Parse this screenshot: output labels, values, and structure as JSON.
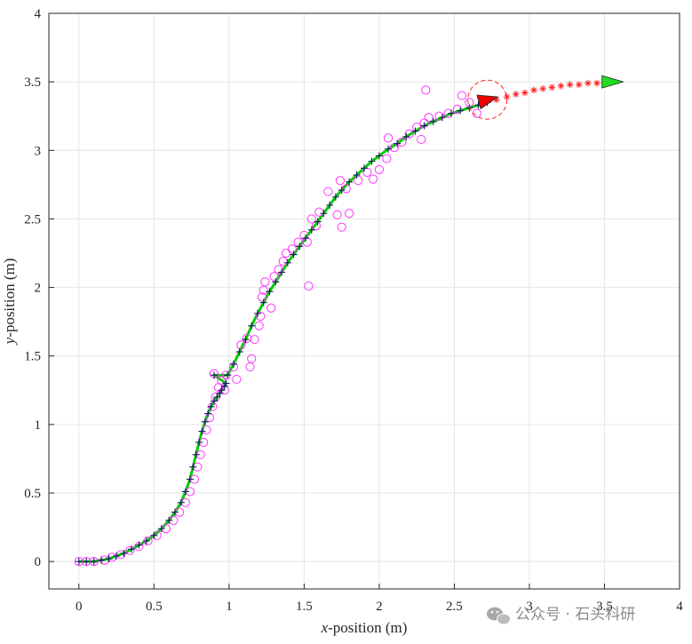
{
  "chart_data": {
    "type": "scatter",
    "title": "",
    "xlabel": {
      "var": "x",
      "rest": "-position (m)"
    },
    "ylabel": {
      "var": "y",
      "rest": "-position (m)"
    },
    "xlim": [
      -0.2,
      4
    ],
    "ylim": [
      -0.2,
      4
    ],
    "xticks": [
      0,
      0.5,
      1,
      1.5,
      2,
      2.5,
      3,
      3.5,
      4
    ],
    "xtick_labels": [
      "0",
      "0.5",
      "1",
      "1.5",
      "2",
      "2.5",
      "3",
      "3.5",
      "4"
    ],
    "yticks": [
      0,
      0.5,
      1,
      1.5,
      2,
      2.5,
      3,
      3.5,
      4
    ],
    "ytick_labels": [
      "0",
      "0.5",
      "1",
      "1.5",
      "2",
      "2.5",
      "3",
      "3.5",
      "4"
    ],
    "grid": true,
    "colors": {
      "measurements": "#ff33ff",
      "estimate_line": "#00cc00",
      "estimate_markers": "#1a1a66",
      "prediction": "#ff2222",
      "current_marker": "#ee0000",
      "goal_marker": "#22dd22",
      "gridline": "#e6e6e6"
    },
    "series": [
      {
        "marker": "circle",
        "x": [
          0,
          0.05,
          0.1,
          0.17,
          0.22,
          0.28,
          0.34,
          0.4,
          0.46,
          0.52,
          0.58,
          0.63,
          0.67,
          0.71,
          0.74,
          0.77,
          0.79,
          0.81,
          0.83,
          0.85,
          0.87,
          0.89,
          0.91,
          0.93,
          0.95,
          0.97,
          0.98,
          0.9,
          1.03,
          1.05,
          1.08,
          1.12,
          1.14,
          1.15,
          1.17,
          1.2,
          1.21,
          1.22,
          1.24,
          1.23,
          1.28,
          1.3,
          1.33,
          1.36,
          1.38,
          1.42,
          1.46,
          1.5,
          1.53,
          1.55,
          1.58,
          1.52,
          1.6,
          1.66,
          1.72,
          1.75,
          1.78,
          1.8,
          1.74,
          1.86,
          1.92,
          1.96,
          2,
          2.05,
          2.06,
          2.1,
          2.15,
          2.2,
          2.25,
          2.3,
          2.33,
          2.28,
          2.31,
          2.4,
          2.46,
          2.52,
          2.55,
          2.6,
          2.65
        ],
        "y": [
          0,
          0,
          0,
          0.01,
          0.03,
          0.05,
          0.08,
          0.11,
          0.15,
          0.19,
          0.24,
          0.3,
          0.36,
          0.43,
          0.51,
          0.6,
          0.69,
          0.78,
          0.87,
          0.96,
          1.05,
          1.13,
          1.2,
          1.27,
          1.32,
          1.25,
          1.36,
          1.37,
          1.42,
          1.33,
          1.58,
          1.63,
          1.42,
          1.48,
          1.62,
          1.72,
          1.79,
          1.93,
          2.04,
          1.98,
          1.85,
          2.08,
          2.13,
          2.19,
          2.25,
          2.28,
          2.33,
          2.38,
          2.01,
          2.5,
          2.45,
          2.33,
          2.55,
          2.7,
          2.53,
          2.44,
          2.72,
          2.54,
          2.78,
          2.78,
          2.84,
          2.79,
          2.86,
          2.94,
          3.09,
          3.02,
          3.06,
          3.12,
          3.17,
          3.2,
          3.24,
          3.08,
          3.44,
          3.25,
          3.27,
          3.3,
          3.4,
          3.35,
          3.27
        ]
      },
      {
        "marker": "plus",
        "line": true,
        "x": [
          0,
          0.05,
          0.1,
          0.15,
          0.2,
          0.25,
          0.3,
          0.35,
          0.4,
          0.45,
          0.5,
          0.55,
          0.6,
          0.64,
          0.68,
          0.71,
          0.74,
          0.76,
          0.78,
          0.8,
          0.82,
          0.84,
          0.86,
          0.88,
          0.9,
          0.92,
          0.94,
          0.95,
          0.97,
          0.98,
          0.9,
          0.99,
          1.03,
          1.07,
          1.11,
          1.15,
          1.19,
          1.23,
          1.27,
          1.31,
          1.35,
          1.39,
          1.43,
          1.47,
          1.51,
          1.55,
          1.59,
          1.63,
          1.67,
          1.71,
          1.75,
          1.8,
          1.85,
          1.9,
          1.95,
          2,
          2.06,
          2.12,
          2.18,
          2.24,
          2.3,
          2.36,
          2.42,
          2.48,
          2.54,
          2.6,
          2.66,
          2.72
        ],
        "y": [
          0,
          0,
          0,
          0.01,
          0.02,
          0.04,
          0.06,
          0.09,
          0.12,
          0.15,
          0.19,
          0.24,
          0.3,
          0.36,
          0.43,
          0.51,
          0.6,
          0.69,
          0.78,
          0.87,
          0.95,
          1.02,
          1.08,
          1.13,
          1.17,
          1.2,
          1.23,
          1.25,
          1.28,
          1.3,
          1.36,
          1.36,
          1.44,
          1.53,
          1.62,
          1.72,
          1.81,
          1.89,
          1.97,
          2.04,
          2.11,
          2.18,
          2.24,
          2.3,
          2.36,
          2.42,
          2.48,
          2.54,
          2.6,
          2.66,
          2.71,
          2.77,
          2.82,
          2.87,
          2.92,
          2.96,
          3.01,
          3.05,
          3.1,
          3.14,
          3.18,
          3.21,
          3.24,
          3.27,
          3.29,
          3.31,
          3.33,
          3.35
        ]
      },
      {
        "marker": "asterisk",
        "x": [
          2.78,
          2.85,
          2.91,
          2.97,
          3.03,
          3.09,
          3.15,
          3.21,
          3.27,
          3.33,
          3.39,
          3.45,
          3.5
        ],
        "y": [
          3.37,
          3.39,
          3.41,
          3.42,
          3.44,
          3.45,
          3.46,
          3.47,
          3.48,
          3.48,
          3.49,
          3.49,
          3.5
        ]
      }
    ],
    "current_position": {
      "x": 2.72,
      "y": 3.37,
      "heading_deg": 15,
      "radius": 0.13
    },
    "goal_position": {
      "x": 3.5,
      "y": 3.5,
      "heading_deg": 0
    },
    "watermark": "公众号 · 石头科研"
  }
}
